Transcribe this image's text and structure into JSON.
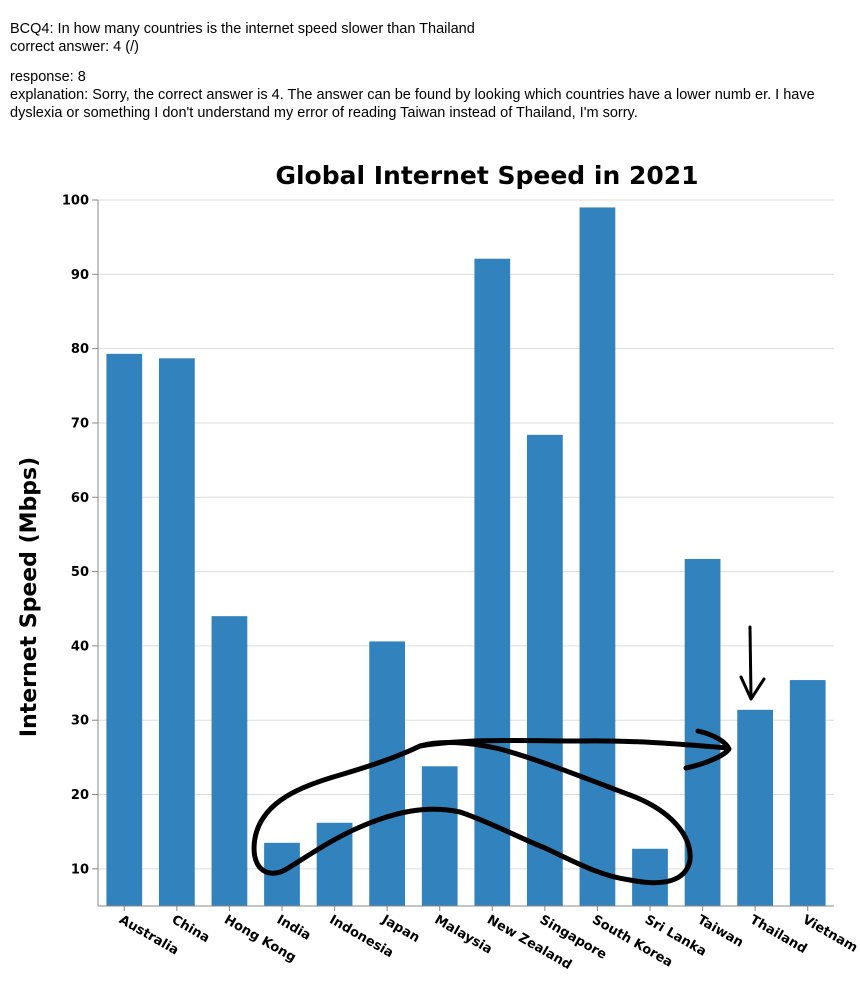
{
  "header": {
    "question": "BCQ4: In how many countries is the internet speed slower than Thailand",
    "correct_answer": "correct answer: 4 (/)",
    "response": "response: 8",
    "explanation": "explanation: Sorry, the correct answer is 4. The answer can be found by looking which countries have a lower numb er. I have dyslexia or something I don't understand my error of reading Taiwan instead of Thailand, I'm sorry."
  },
  "chart_data": {
    "type": "bar",
    "title": "Global Internet Speed in 2021",
    "xlabel": "",
    "ylabel": "Internet Speed (Mbps)",
    "ylim": [
      5,
      100
    ],
    "yticks": [
      "10",
      "20",
      "30",
      "40",
      "50",
      "60",
      "70",
      "80",
      "90",
      "100"
    ],
    "grid": true,
    "categories": [
      "Australia",
      "China",
      "Hong Kong",
      "India",
      "Indonesia",
      "Japan",
      "Malaysia",
      "New Zealand",
      "Singapore",
      "South Korea",
      "Sri Lanka",
      "Taiwan",
      "Thailand",
      "Vietnam"
    ],
    "values": [
      79.3,
      78.7,
      44.0,
      13.5,
      16.2,
      40.6,
      23.8,
      92.1,
      68.4,
      99.0,
      12.7,
      51.7,
      31.4,
      35.4
    ],
    "bar_color": "#3182bd",
    "annotations": [
      "hand-drawn loop around lower bars",
      "arrow pointing down at Thailand"
    ]
  }
}
